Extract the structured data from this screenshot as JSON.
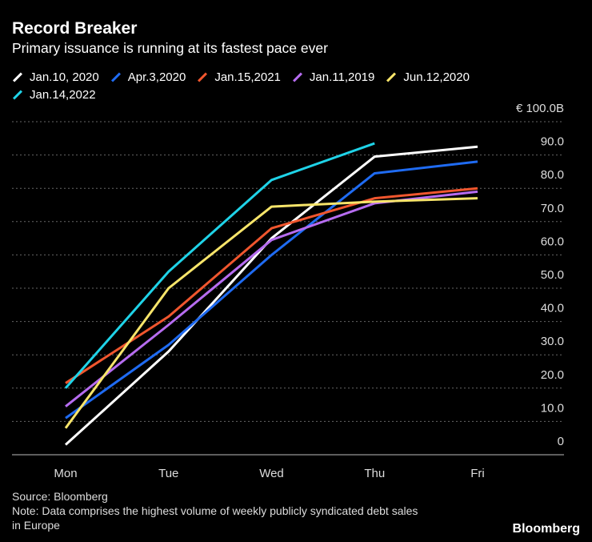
{
  "chart_data": {
    "type": "line",
    "title": "Record Breaker",
    "subtitle": "Primary issuance is running at its fastest pace ever",
    "categories": [
      "Mon",
      "Tue",
      "Wed",
      "Thu",
      "Fri"
    ],
    "series": [
      {
        "name": "Jan.10, 2020",
        "color": "#ffffff",
        "values": [
          3,
          31,
          65,
          89.5,
          92.5
        ]
      },
      {
        "name": "Apr.3,2020",
        "color": "#1f6bf2",
        "values": [
          11,
          33,
          60,
          84.5,
          88
        ]
      },
      {
        "name": "Jan.15,2021",
        "color": "#f0562e",
        "values": [
          21.5,
          41.5,
          68,
          77,
          80
        ]
      },
      {
        "name": "Jan.11,2019",
        "color": "#b66cf0",
        "values": [
          14.5,
          39,
          64.5,
          75.5,
          79
        ]
      },
      {
        "name": "Jun.12,2020",
        "color": "#f8e56a",
        "values": [
          8,
          50,
          74.5,
          76,
          77
        ]
      },
      {
        "name": "Jan.14,2022",
        "color": "#1fd3e8",
        "values": [
          20,
          55,
          82.5,
          93.5,
          null
        ]
      }
    ],
    "ylim": [
      0,
      100
    ],
    "yticks": [
      0,
      {
        "value": 10,
        "label": "10.0"
      },
      {
        "value": 20,
        "label": "20.0"
      },
      {
        "value": 30,
        "label": "30.0"
      },
      {
        "value": 40,
        "label": "40.0"
      },
      {
        "value": 50,
        "label": "50.0"
      },
      {
        "value": 60,
        "label": "60.0"
      },
      {
        "value": 70,
        "label": "70.0"
      },
      {
        "value": 80,
        "label": "80.0"
      },
      {
        "value": 90,
        "label": "90.0"
      },
      {
        "value": 100,
        "label": "€ 100.0B"
      }
    ],
    "grid": true,
    "source": "Source: Bloomberg",
    "note": [
      "Note: Data comprises the highest volume of weekly publicly syndicated debt sales",
      "in Europe"
    ],
    "logo": "Bloomberg"
  }
}
